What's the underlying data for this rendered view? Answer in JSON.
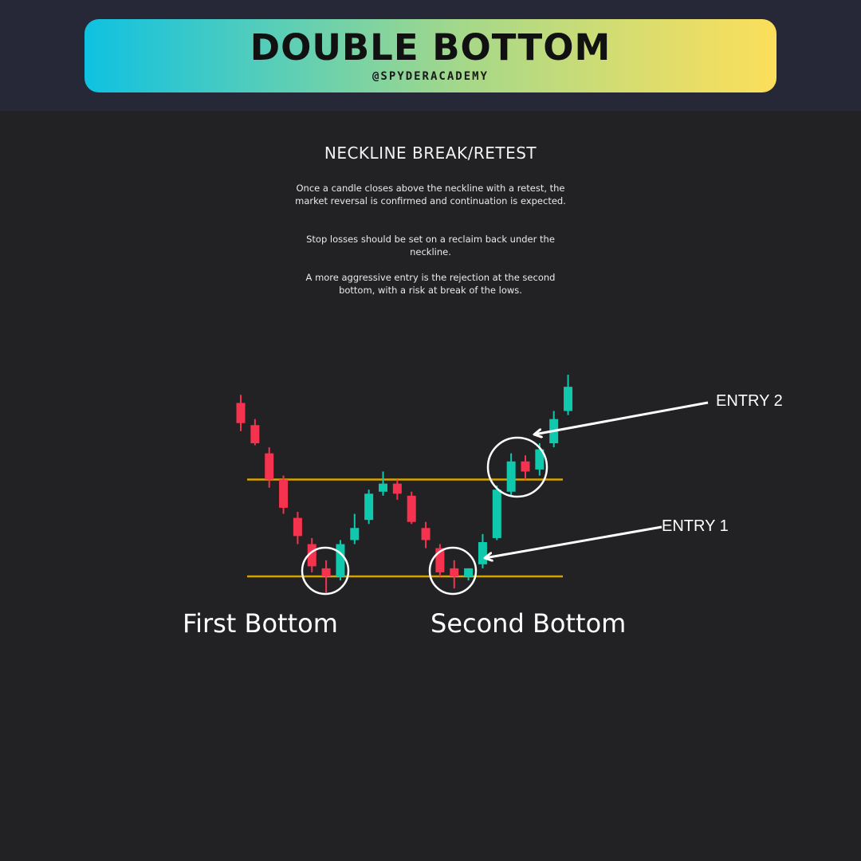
{
  "header": {
    "title": "DOUBLE BOTTOM",
    "handle": "@SPYDERACADEMY"
  },
  "content": {
    "section_title": "NECKLINE BREAK/RETEST",
    "paragraphs": [
      "Once a candle closes above the neckline with a retest, the market reversal is confirmed and continuation is expected.",
      "Stop losses should be set on a reclaim back under the neckline.",
      "A more aggressive entry is the rejection at the second bottom, with a risk at break of the lows."
    ]
  },
  "colors": {
    "bullish": "#10c9ad",
    "bearish": "#f5334f",
    "neckline": "#d6a400",
    "annotation": "#ffffff"
  },
  "chart_data": {
    "type": "candlestick",
    "levels": {
      "neckline": 62,
      "support": 14
    },
    "candles": [
      {
        "o": 100,
        "h": 104,
        "l": 86,
        "c": 90
      },
      {
        "o": 89,
        "h": 92,
        "l": 79,
        "c": 80
      },
      {
        "o": 75,
        "h": 78,
        "l": 58,
        "c": 62
      },
      {
        "o": 62,
        "h": 64,
        "l": 45,
        "c": 48
      },
      {
        "o": 43,
        "h": 46,
        "l": 30,
        "c": 34
      },
      {
        "o": 30,
        "h": 33,
        "l": 16,
        "c": 19
      },
      {
        "o": 18,
        "h": 22,
        "l": 6,
        "c": 14
      },
      {
        "o": 14,
        "h": 32,
        "l": 12,
        "c": 30
      },
      {
        "o": 32,
        "h": 45,
        "l": 30,
        "c": 38
      },
      {
        "o": 42,
        "h": 57,
        "l": 40,
        "c": 55
      },
      {
        "o": 56,
        "h": 66,
        "l": 54,
        "c": 60
      },
      {
        "o": 60,
        "h": 62,
        "l": 52,
        "c": 55
      },
      {
        "o": 54,
        "h": 56,
        "l": 40,
        "c": 41
      },
      {
        "o": 38,
        "h": 41,
        "l": 28,
        "c": 32
      },
      {
        "o": 28,
        "h": 30,
        "l": 14,
        "c": 16
      },
      {
        "o": 18,
        "h": 22,
        "l": 8,
        "c": 14
      },
      {
        "o": 14,
        "h": 18,
        "l": 12,
        "c": 18
      },
      {
        "o": 20,
        "h": 35,
        "l": 18,
        "c": 31
      },
      {
        "o": 33,
        "h": 59,
        "l": 32,
        "c": 57
      },
      {
        "o": 56,
        "h": 75,
        "l": 54,
        "c": 71
      },
      {
        "o": 71,
        "h": 74,
        "l": 62,
        "c": 66
      },
      {
        "o": 67,
        "h": 80,
        "l": 64,
        "c": 77
      },
      {
        "o": 80,
        "h": 96,
        "l": 78,
        "c": 92
      },
      {
        "o": 96,
        "h": 114,
        "l": 94,
        "c": 108
      }
    ],
    "annotations": [
      {
        "label": "ENTRY 2"
      },
      {
        "label": "ENTRY 1"
      }
    ],
    "bottom_labels": [
      "First Bottom",
      "Second Bottom"
    ]
  }
}
